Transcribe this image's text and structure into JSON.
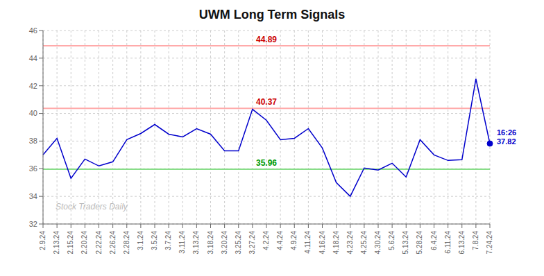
{
  "chart_data": {
    "type": "line",
    "title": "UWM Long Term Signals",
    "categories": [
      "2.9.24",
      "2.13.24",
      "2.15.24",
      "2.20.24",
      "2.22.24",
      "2.26.24",
      "2.28.24",
      "3.1.24",
      "3.5.24",
      "3.7.24",
      "3.11.24",
      "3.13.24",
      "3.18.24",
      "3.20.24",
      "3.25.24",
      "3.27.24",
      "4.2.24",
      "4.4.24",
      "4.9.24",
      "4.11.24",
      "4.16.24",
      "4.18.24",
      "4.23.24",
      "4.25.24",
      "4.30.24",
      "5.6.24",
      "5.13.24",
      "5.28.24",
      "6.4.24",
      "6.11.24",
      "6.13.24",
      "7.8.24",
      "7.24.24"
    ],
    "values": [
      37.0,
      38.2,
      35.3,
      36.7,
      36.2,
      36.5,
      38.1,
      38.55,
      39.2,
      38.5,
      38.3,
      38.9,
      38.5,
      37.3,
      37.3,
      40.3,
      39.5,
      38.1,
      38.2,
      38.9,
      37.5,
      35.0,
      34.0,
      36.05,
      35.9,
      36.4,
      35.4,
      38.1,
      37.0,
      36.6,
      36.65,
      42.5,
      37.82
    ],
    "color": "#0000cc",
    "ylim": [
      32,
      46
    ],
    "yticks": [
      32,
      34,
      36,
      38,
      40,
      42,
      44,
      46
    ],
    "grid": true,
    "reference_lines": [
      {
        "value": 44.89,
        "color": "#ffaaaa",
        "label_color": "#cc0000"
      },
      {
        "value": 40.37,
        "color": "#ffaaaa",
        "label_color": "#cc0000"
      },
      {
        "value": 35.96,
        "color": "#88dd88",
        "label_color": "#009900"
      }
    ],
    "last_label": {
      "time": "16:26",
      "value": 37.82,
      "color": "#0000cc"
    },
    "watermark": "Stock Traders Daily"
  }
}
